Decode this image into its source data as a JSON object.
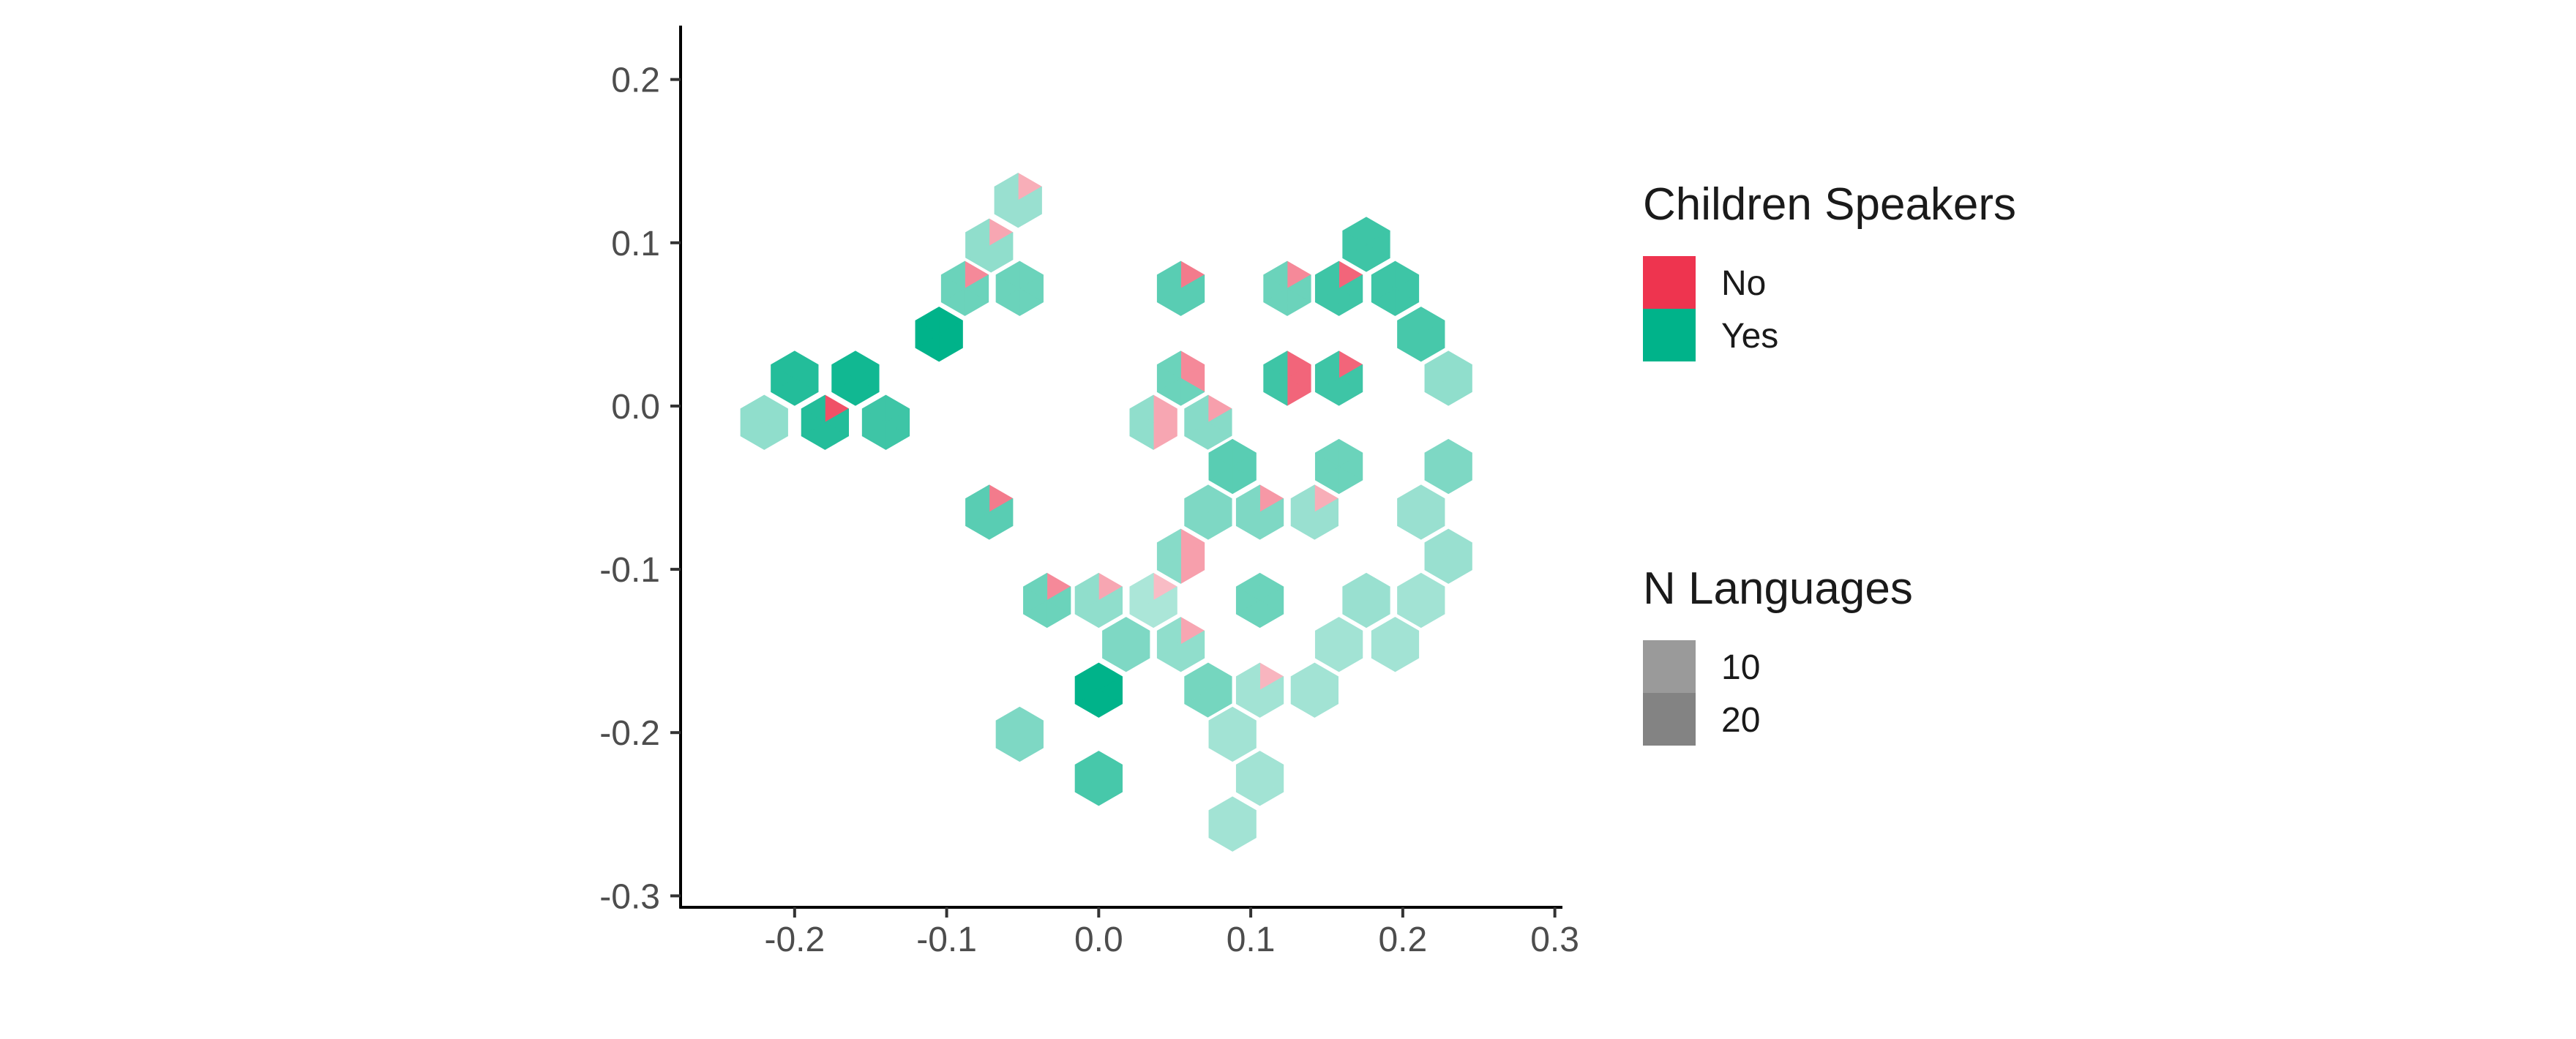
{
  "chart_data": {
    "type": "hexbin",
    "title": "",
    "xlabel": "",
    "ylabel": "",
    "xlim": [
      -0.275,
      0.305
    ],
    "ylim": [
      -0.307,
      0.233
    ],
    "x_ticks": [
      -0.2,
      -0.1,
      0.0,
      0.1,
      0.2,
      0.3
    ],
    "x_tick_labels": [
      "-0.2",
      "-0.1",
      "0.0",
      "0.1",
      "0.2",
      "0.3"
    ],
    "y_ticks": [
      0.2,
      0.1,
      0.0,
      -0.1,
      -0.2,
      -0.3
    ],
    "y_tick_labels": [
      "0.2",
      "0.1",
      "0.0",
      "-0.1",
      "-0.2",
      "-0.3"
    ],
    "grid": false,
    "legend_placement": "right",
    "colors": {
      "No": "#ee344f",
      "Yes": "#00b38a"
    },
    "legends": [
      {
        "title": "Children Speakers",
        "entries": [
          {
            "label": "No",
            "color": "#ee344f"
          },
          {
            "label": "Yes",
            "color": "#00b38a"
          }
        ]
      },
      {
        "title": "N Languages",
        "entries": [
          {
            "label": "10",
            "value": 10,
            "color": "#9a9a9a"
          },
          {
            "label": "20",
            "value": 20,
            "color": "#838383"
          }
        ]
      }
    ],
    "bins": [
      {
        "x": -0.2,
        "y": 0.017,
        "n": 18,
        "no": 0
      },
      {
        "x": -0.16,
        "y": 0.017,
        "n": 20,
        "no": 0
      },
      {
        "x": -0.22,
        "y": -0.01,
        "n": 6,
        "no": 0
      },
      {
        "x": -0.18,
        "y": -0.01,
        "n": 18,
        "no": 1
      },
      {
        "x": -0.14,
        "y": -0.01,
        "n": 15,
        "no": 0
      },
      {
        "x": -0.105,
        "y": 0.044,
        "n": 22,
        "no": 0
      },
      {
        "x": -0.053,
        "y": 0.126,
        "n": 5,
        "no": 1
      },
      {
        "x": -0.072,
        "y": 0.098,
        "n": 6,
        "no": 1
      },
      {
        "x": -0.088,
        "y": 0.072,
        "n": 10,
        "no": 1
      },
      {
        "x": -0.052,
        "y": 0.072,
        "n": 10,
        "no": 0
      },
      {
        "x": 0.054,
        "y": 0.072,
        "n": 12,
        "no": 1
      },
      {
        "x": 0.124,
        "y": 0.072,
        "n": 10,
        "no": 1
      },
      {
        "x": 0.158,
        "y": 0.072,
        "n": 15,
        "no": 1
      },
      {
        "x": 0.195,
        "y": 0.072,
        "n": 15,
        "no": 0
      },
      {
        "x": 0.176,
        "y": 0.099,
        "n": 15,
        "no": 0
      },
      {
        "x": 0.212,
        "y": 0.044,
        "n": 14,
        "no": 0
      },
      {
        "x": 0.23,
        "y": 0.017,
        "n": 6,
        "no": 0
      },
      {
        "x": 0.054,
        "y": 0.017,
        "n": 10,
        "no": 2
      },
      {
        "x": 0.124,
        "y": 0.017,
        "n": 15,
        "no": 3
      },
      {
        "x": 0.158,
        "y": 0.017,
        "n": 15,
        "no": 1
      },
      {
        "x": 0.036,
        "y": -0.01,
        "n": 6,
        "no": 3
      },
      {
        "x": 0.072,
        "y": -0.01,
        "n": 7,
        "no": 1
      },
      {
        "x": 0.088,
        "y": -0.037,
        "n": 12,
        "no": 0
      },
      {
        "x": 0.158,
        "y": -0.037,
        "n": 10,
        "no": 0
      },
      {
        "x": 0.23,
        "y": -0.037,
        "n": 8,
        "no": 0
      },
      {
        "x": 0.072,
        "y": -0.065,
        "n": 8,
        "no": 0
      },
      {
        "x": 0.106,
        "y": -0.065,
        "n": 8,
        "no": 1
      },
      {
        "x": 0.142,
        "y": -0.065,
        "n": 5,
        "no": 1
      },
      {
        "x": 0.212,
        "y": -0.065,
        "n": 5,
        "no": 0
      },
      {
        "x": -0.072,
        "y": -0.065,
        "n": 12,
        "no": 1
      },
      {
        "x": 0.054,
        "y": -0.092,
        "n": 7,
        "no": 3
      },
      {
        "x": 0.23,
        "y": -0.092,
        "n": 5,
        "no": 0
      },
      {
        "x": -0.034,
        "y": -0.119,
        "n": 10,
        "no": 1
      },
      {
        "x": 0.0,
        "y": -0.119,
        "n": 6,
        "no": 1
      },
      {
        "x": 0.036,
        "y": -0.119,
        "n": 3,
        "no": 1
      },
      {
        "x": 0.106,
        "y": -0.119,
        "n": 10,
        "no": 0
      },
      {
        "x": 0.176,
        "y": -0.119,
        "n": 5,
        "no": 0
      },
      {
        "x": 0.212,
        "y": -0.119,
        "n": 4,
        "no": 0
      },
      {
        "x": 0.018,
        "y": -0.146,
        "n": 8,
        "no": 0
      },
      {
        "x": 0.054,
        "y": -0.146,
        "n": 6,
        "no": 1
      },
      {
        "x": 0.158,
        "y": -0.146,
        "n": 4,
        "no": 0
      },
      {
        "x": 0.195,
        "y": -0.146,
        "n": 4,
        "no": 0
      },
      {
        "x": 0.0,
        "y": -0.174,
        "n": 22,
        "no": 0
      },
      {
        "x": 0.072,
        "y": -0.174,
        "n": 9,
        "no": 0
      },
      {
        "x": 0.106,
        "y": -0.174,
        "n": 4,
        "no": 1
      },
      {
        "x": 0.142,
        "y": -0.174,
        "n": 4,
        "no": 0
      },
      {
        "x": -0.052,
        "y": -0.201,
        "n": 8,
        "no": 0
      },
      {
        "x": 0.088,
        "y": -0.201,
        "n": 4,
        "no": 0
      },
      {
        "x": 0.0,
        "y": -0.228,
        "n": 14,
        "no": 0
      },
      {
        "x": 0.106,
        "y": -0.228,
        "n": 4,
        "no": 0
      },
      {
        "x": 0.088,
        "y": -0.256,
        "n": 4,
        "no": 0
      }
    ]
  }
}
